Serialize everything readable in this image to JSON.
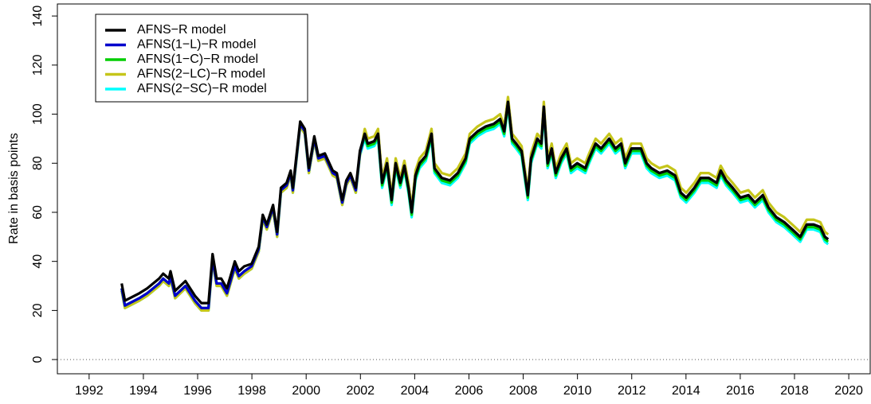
{
  "chart_data": {
    "type": "line",
    "y_label": "Rate in basis points",
    "xlim": [
      1990.83,
      2020.79
    ],
    "ylim": [
      -5.8,
      144.9
    ],
    "xticks": [
      1992,
      1994,
      1996,
      1998,
      2000,
      2002,
      2004,
      2006,
      2008,
      2010,
      2012,
      2014,
      2016,
      2018,
      2020
    ],
    "yticks": [
      0,
      20,
      40,
      60,
      80,
      100,
      120,
      140
    ],
    "hline": 0,
    "legend": "top-left",
    "x": [
      1993.2,
      1993.32,
      1993.85,
      1994.14,
      1994.58,
      1994.73,
      1994.94,
      1995.0,
      1995.17,
      1995.55,
      1995.9,
      1996.14,
      1996.4,
      1996.55,
      1996.7,
      1996.87,
      1997.08,
      1997.37,
      1997.52,
      1997.72,
      1997.99,
      1998.25,
      1998.4,
      1998.55,
      1998.78,
      1998.93,
      1999.07,
      1999.28,
      1999.43,
      1999.51,
      1999.78,
      1999.95,
      2000.1,
      2000.3,
      2000.45,
      2000.69,
      2000.98,
      2001.13,
      2001.33,
      2001.48,
      2001.63,
      2001.83,
      2001.98,
      2002.16,
      2002.27,
      2002.51,
      2002.65,
      2002.8,
      2002.98,
      2003.15,
      2003.3,
      2003.47,
      2003.62,
      2003.77,
      2003.89,
      2004.03,
      2004.18,
      2004.41,
      2004.62,
      2004.73,
      2005.0,
      2005.3,
      2005.59,
      2005.88,
      2006.03,
      2006.32,
      2006.62,
      2006.91,
      2007.15,
      2007.3,
      2007.44,
      2007.59,
      2007.74,
      2007.94,
      2008.17,
      2008.29,
      2008.52,
      2008.67,
      2008.76,
      2008.9,
      2009.05,
      2009.2,
      2009.4,
      2009.6,
      2009.76,
      2009.99,
      2010.29,
      2010.43,
      2010.67,
      2010.87,
      2011.17,
      2011.4,
      2011.61,
      2011.76,
      2011.99,
      2012.34,
      2012.55,
      2012.72,
      2013.02,
      2013.31,
      2013.6,
      2013.81,
      2014.01,
      2014.31,
      2014.54,
      2014.84,
      2015.13,
      2015.28,
      2015.48,
      2015.72,
      2016.01,
      2016.3,
      2016.54,
      2016.83,
      2017.04,
      2017.33,
      2017.62,
      2017.92,
      2018.21,
      2018.45,
      2018.71,
      2018.95,
      2019.12,
      2019.24
    ],
    "series": [
      {
        "name": "AFNS−R model",
        "color": "#000000",
        "values": [
          31,
          24,
          27,
          29,
          33,
          35,
          33,
          36,
          28,
          32,
          26,
          23,
          23,
          43,
          33,
          33,
          29,
          40,
          36,
          38,
          39,
          46,
          59,
          55,
          63,
          52,
          70,
          72,
          77,
          70,
          97,
          94,
          78,
          91,
          83,
          84,
          77,
          76,
          65,
          73,
          76,
          70,
          85,
          92,
          88,
          89,
          92,
          72,
          80,
          65,
          80,
          72,
          79,
          70,
          60,
          75,
          80,
          83,
          92,
          78,
          74,
          73,
          76,
          82,
          90,
          93,
          95,
          96,
          98,
          93,
          105,
          90,
          88,
          85,
          67,
          82,
          90,
          88,
          103,
          80,
          86,
          76,
          82,
          86,
          78,
          80,
          78,
          82,
          88,
          86,
          90,
          86,
          88,
          80,
          86,
          86,
          80,
          78,
          76,
          77,
          75,
          68,
          66,
          70,
          74,
          74,
          72,
          77,
          73,
          70,
          66,
          67,
          64,
          67,
          62,
          58,
          56,
          53,
          50,
          55,
          55,
          54,
          50,
          49
        ]
      },
      {
        "name": "AFNS(1−L)−R model",
        "color": "#0000cd",
        "values": [
          29,
          22,
          25,
          27,
          31,
          33,
          31,
          34,
          26,
          30,
          24,
          21,
          21,
          41,
          31,
          31,
          27,
          38,
          34,
          36,
          38,
          45,
          58,
          54,
          62,
          51,
          69,
          71,
          76,
          69,
          96,
          93,
          77,
          90,
          82,
          83,
          76,
          75,
          64,
          72,
          75,
          69,
          84,
          92,
          88,
          89,
          92,
          72,
          80,
          65,
          80,
          72,
          79,
          70,
          60,
          75,
          80,
          83,
          92,
          78,
          74,
          73,
          76,
          82,
          90,
          93,
          95,
          96,
          98,
          93,
          105,
          90,
          88,
          85,
          67,
          82,
          90,
          88,
          103,
          80,
          86,
          76,
          82,
          86,
          78,
          80,
          78,
          82,
          88,
          86,
          90,
          86,
          88,
          80,
          86,
          86,
          80,
          78,
          76,
          77,
          75,
          68,
          66,
          70,
          74,
          74,
          72,
          77,
          73,
          70,
          66,
          67,
          64,
          67,
          62,
          58,
          56,
          53,
          50,
          55,
          55,
          54,
          50,
          49
        ]
      },
      {
        "name": "AFNS(1−C)−R model",
        "color": "#00cd00",
        "values": [
          29,
          22,
          25,
          27,
          31,
          33,
          31,
          34,
          26,
          30,
          24,
          21,
          21,
          41,
          31,
          31,
          27,
          38,
          34,
          36,
          38,
          45,
          58,
          54,
          62,
          51,
          69,
          71,
          76,
          69,
          96,
          93,
          77,
          90,
          82,
          83,
          76,
          75,
          64,
          72,
          75,
          69,
          84,
          91,
          87,
          88,
          91,
          71,
          79,
          64,
          79,
          71,
          78,
          69,
          59,
          74,
          79,
          82,
          91,
          77,
          73,
          72,
          75,
          81,
          89,
          92,
          94,
          95,
          97,
          92,
          104,
          89,
          87,
          84,
          66,
          81,
          89,
          87,
          102,
          79,
          85,
          75,
          81,
          85,
          77,
          79,
          77,
          81,
          87,
          85,
          89,
          85,
          87,
          79,
          85,
          85,
          79,
          77,
          75,
          76,
          74,
          67,
          65,
          69,
          73,
          73,
          71,
          76,
          72,
          69,
          65,
          66,
          63,
          66,
          61,
          57,
          55,
          52,
          49,
          54,
          54,
          53,
          49,
          48
        ]
      },
      {
        "name": "AFNS(2−LC)−R model",
        "color": "#c5c51a",
        "values": [
          28,
          21,
          24,
          26,
          30,
          32,
          30,
          33,
          25,
          29,
          23,
          20,
          20,
          40,
          30,
          30,
          26,
          37,
          33,
          35,
          37,
          44,
          57,
          53,
          61,
          50,
          68,
          70,
          75,
          68,
          95,
          92,
          76,
          89,
          81,
          82,
          75,
          74,
          63,
          71,
          74,
          68,
          83,
          94,
          90,
          91,
          94,
          74,
          82,
          67,
          82,
          74,
          81,
          72,
          62,
          77,
          82,
          85,
          94,
          80,
          76,
          75,
          78,
          84,
          92,
          95,
          97,
          98,
          100,
          95,
          107,
          92,
          90,
          87,
          69,
          84,
          92,
          90,
          105,
          82,
          88,
          78,
          84,
          88,
          80,
          82,
          80,
          84,
          90,
          88,
          92,
          88,
          90,
          82,
          88,
          88,
          82,
          80,
          78,
          79,
          77,
          70,
          68,
          72,
          76,
          76,
          74,
          79,
          75,
          72,
          68,
          69,
          66,
          69,
          64,
          60,
          58,
          55,
          52,
          57,
          57,
          56,
          52,
          51
        ]
      },
      {
        "name": "AFNS(2−SC)−R model",
        "color": "#00ffff",
        "values": [
          28,
          21,
          24,
          26,
          30,
          32,
          30,
          33,
          25,
          29,
          23,
          20,
          20,
          40,
          30,
          30,
          26,
          37,
          33,
          35,
          37,
          44,
          57,
          53,
          61,
          50,
          68,
          70,
          75,
          68,
          95,
          92,
          76,
          89,
          81,
          82,
          75,
          74,
          63,
          71,
          74,
          68,
          83,
          90,
          86,
          87,
          90,
          70,
          78,
          63,
          78,
          70,
          77,
          68,
          58,
          73,
          78,
          81,
          90,
          76,
          72,
          71,
          74,
          80,
          88,
          91,
          93,
          94,
          96,
          91,
          103,
          88,
          86,
          83,
          65,
          80,
          88,
          86,
          101,
          78,
          84,
          74,
          80,
          84,
          76,
          78,
          76,
          80,
          86,
          84,
          88,
          84,
          86,
          78,
          84,
          84,
          78,
          76,
          74,
          75,
          73,
          66,
          64,
          68,
          72,
          72,
          70,
          75,
          71,
          68,
          64,
          65,
          62,
          65,
          60,
          56,
          54,
          51,
          48,
          53,
          53,
          52,
          48,
          47
        ]
      }
    ]
  }
}
